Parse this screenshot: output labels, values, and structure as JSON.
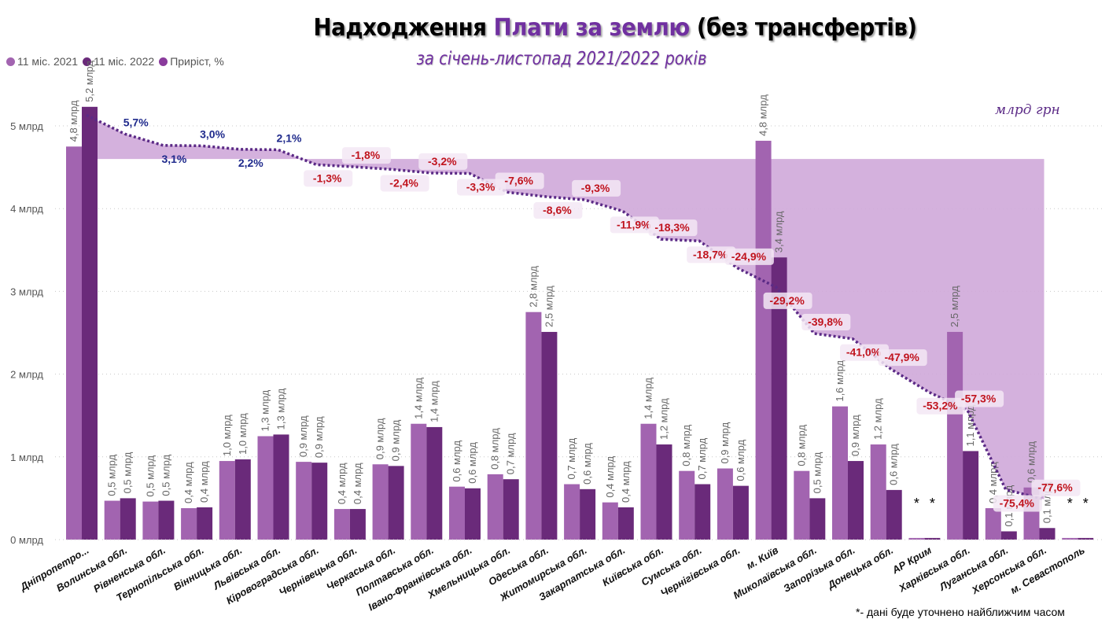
{
  "header": {
    "title_part1": "Надходження ",
    "title_accent": "Плати за землю",
    "title_part2": " (без трансфертів)",
    "subtitle": "за січень-листопад 2021/2022 років",
    "unit_label": "млрд грн",
    "footnote": "*- дані буде уточнено найближчим часом"
  },
  "colors": {
    "series_2021": "#a264b0",
    "series_2022": "#6a2a7a",
    "growth_line": "#5b2a86",
    "area_fill": "#cfa9d9",
    "positive_label": "#1f2a8c",
    "negative_label": "#c0141e",
    "title_accent": "#7030a0"
  },
  "chart_data": {
    "type": "bar",
    "title": "Надходження Плати за землю (без трансфертів)",
    "subtitle": "за січень-листопад 2021/2022 років",
    "ylabel": "млрд грн",
    "xlabel": "",
    "ylim": [
      0,
      5.5
    ],
    "yticks": [
      0,
      1,
      2,
      3,
      4,
      5
    ],
    "ytick_labels": [
      "0 млрд",
      "1 млрд",
      "2 млрд",
      "3 млрд",
      "4 млрд",
      "5 млрд"
    ],
    "grid": true,
    "legend_position": "top-left",
    "legend": [
      "11 міс. 2021",
      "11 міс. 2022",
      "Приріст, %"
    ],
    "categories": [
      "Дніпропетро...",
      "Волинська обл.",
      "Рівненська обл.",
      "Тернопільська обл.",
      "Вінницька обл.",
      "Львівська обл.",
      "Кіровоградська обл.",
      "Чернівецька обл.",
      "Черкаська обл.",
      "Полтавська обл.",
      "Івано-Франківська обл.",
      "Хмельницька обл.",
      "Одеська обл.",
      "Житомирська обл.",
      "Закарпатська обл.",
      "Київська обл.",
      "Сумська обл.",
      "Чернігівська обл.",
      "м. Київ",
      "Миколаївська обл.",
      "Запорізька обл.",
      "Донецька обл.",
      "АР Крим",
      "Харківська обл.",
      "Луганська обл.",
      "Херсонська обл.",
      "м. Севастополь"
    ],
    "series": [
      {
        "name": "11 міс. 2021",
        "values": [
          4.75,
          0.47,
          0.46,
          0.38,
          0.95,
          1.25,
          0.94,
          0.37,
          0.91,
          1.4,
          0.64,
          0.79,
          2.75,
          0.67,
          0.45,
          1.4,
          0.83,
          0.86,
          4.82,
          0.83,
          1.61,
          1.15,
          0.02,
          2.51,
          0.38,
          0.63,
          0.02
        ],
        "labels": [
          "4,8 млрд",
          "0,5 млрд",
          "0,5 млрд",
          "0,4 млрд",
          "1,0 млрд",
          "1,3 млрд",
          "0,9 млрд",
          "0,4 млрд",
          "0,9 млрд",
          "1,4 млрд",
          "0,6 млрд",
          "0,8 млрд",
          "2,8 млрд",
          "0,7 млрд",
          "0,4 млрд",
          "1,4 млрд",
          "0,8 млрд",
          "0,9 млрд",
          "4,8 млрд",
          "0,8 млрд",
          "1,6 млрд",
          "1,2 млрд",
          "*",
          "2,5 млрд",
          "0,4 млрд",
          "0,6 млрд",
          "*"
        ]
      },
      {
        "name": "11 міс. 2022",
        "values": [
          5.23,
          0.5,
          0.47,
          0.39,
          0.97,
          1.27,
          0.93,
          0.37,
          0.89,
          1.36,
          0.62,
          0.73,
          2.51,
          0.61,
          0.39,
          1.15,
          0.67,
          0.65,
          3.41,
          0.5,
          0.95,
          0.6,
          0.02,
          1.07,
          0.1,
          0.14,
          0.02
        ],
        "labels": [
          "5,2 млрд",
          "0,5 млрд",
          "0,5 млрд",
          "0,4 млрд",
          "1,0 млрд",
          "1,3 млрд",
          "0,9 млрд",
          "0,4 млрд",
          "0,9 млрд",
          "1,4 млрд",
          "0,6 млрд",
          "0,7 млрд",
          "2,5 млрд",
          "0,6 млрд",
          "0,4 млрд",
          "1,2 млрд",
          "0,7 млрд",
          "0,6 млрд",
          "3,4 млрд",
          "0,5 млрд",
          "0,9 млрд",
          "0,6 млрд",
          "*",
          "1,1 млрд",
          "0,1 млрд",
          "0,1 млрд",
          "*"
        ]
      },
      {
        "name": "Приріст, %",
        "type": "line",
        "values": [
          10.0,
          5.7,
          3.1,
          3.0,
          2.2,
          2.1,
          -1.3,
          -1.8,
          -2.4,
          -3.2,
          -3.3,
          -7.6,
          -8.6,
          -9.3,
          -11.9,
          -18.3,
          -18.7,
          -24.9,
          -29.2,
          -39.8,
          -41.0,
          -47.9,
          -53.2,
          -57.3,
          -75.4,
          -77.6,
          null
        ],
        "labels": [
          "",
          "5,7%",
          "3,1%",
          "3,0%",
          "2,2%",
          "2,1%",
          "-1,3%",
          "-1,8%",
          "-2,4%",
          "-3,2%",
          "-3,3%",
          "-7,6%",
          "-8,6%",
          "-9,3%",
          "-11,9%",
          "-18,3%",
          "-18,7%",
          "-24,9%",
          "-29,2%",
          "-39,8%",
          "-41,0%",
          "-47,9%",
          "-53,2%",
          "-57,3%",
          "-75,4%",
          "-77,6%",
          ""
        ]
      }
    ]
  }
}
